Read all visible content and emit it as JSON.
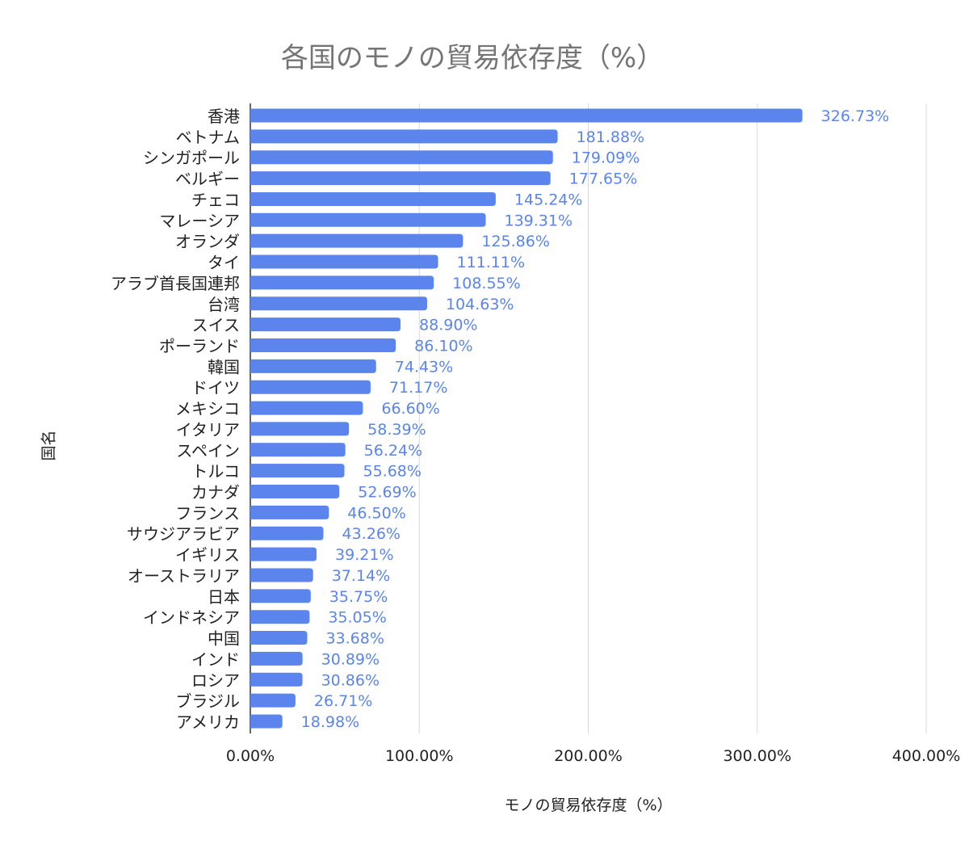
{
  "chart_data": {
    "type": "bar",
    "orientation": "horizontal",
    "title": "各国のモノの貿易依存度（%）",
    "xlabel": "モノの貿易依存度（%）",
    "ylabel": "国名",
    "xlim": [
      0,
      400
    ],
    "xticks": [
      "0.00%",
      "100.00%",
      "200.00%",
      "300.00%",
      "400.00%"
    ],
    "grid": true,
    "color": "#5b85ec",
    "label_color": "#5b85ec",
    "categories": [
      "香港",
      "ベトナム",
      "シンガポール",
      "ベルギー",
      "チェコ",
      "マレーシア",
      "オランダ",
      "タイ",
      "アラブ首長国連邦",
      "台湾",
      "スイス",
      "ポーランド",
      "韓国",
      "ドイツ",
      "メキシコ",
      "イタリア",
      "スペイン",
      "トルコ",
      "カナダ",
      "フランス",
      "サウジアラビア",
      "イギリス",
      "オーストラリア",
      "日本",
      "インドネシア",
      "中国",
      "インド",
      "ロシア",
      "ブラジル",
      "アメリカ"
    ],
    "values": [
      326.73,
      181.88,
      179.09,
      177.65,
      145.24,
      139.31,
      125.86,
      111.11,
      108.55,
      104.63,
      88.9,
      86.1,
      74.43,
      71.17,
      66.6,
      58.39,
      56.24,
      55.68,
      52.69,
      46.5,
      43.26,
      39.21,
      37.14,
      35.75,
      35.05,
      33.68,
      30.89,
      30.86,
      26.71,
      18.98
    ],
    "data_labels": [
      "326.73%",
      "181.88%",
      "179.09%",
      "177.65%",
      "145.24%",
      "139.31%",
      "125.86%",
      "111.11%",
      "108.55%",
      "104.63%",
      "88.90%",
      "86.10%",
      "74.43%",
      "71.17%",
      "66.60%",
      "58.39%",
      "56.24%",
      "55.68%",
      "52.69%",
      "46.50%",
      "43.26%",
      "39.21%",
      "37.14%",
      "35.75%",
      "35.05%",
      "33.68%",
      "30.89%",
      "30.86%",
      "26.71%",
      "18.98%"
    ]
  }
}
